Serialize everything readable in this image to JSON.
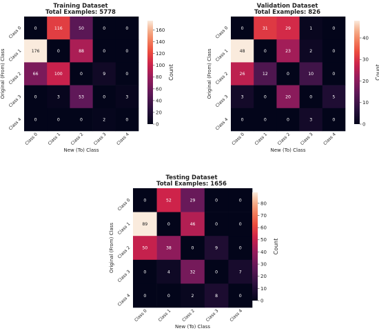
{
  "chart_data": [
    {
      "type": "heatmap",
      "title": "Training Dataset",
      "subtitle": "Total Examples: 5778",
      "xlabel": "New (To) Class",
      "ylabel": "Original (From) Class",
      "x_categories": [
        "Class 0",
        "Class 1",
        "Class 2",
        "Class 3",
        "Class 4"
      ],
      "y_categories": [
        "Class 0",
        "Class 1",
        "Class 2",
        "Class 3",
        "Class 4"
      ],
      "values": [
        [
          0,
          116,
          50,
          0,
          0
        ],
        [
          176,
          0,
          88,
          0,
          0
        ],
        [
          66,
          100,
          0,
          9,
          0
        ],
        [
          0,
          3,
          53,
          0,
          3
        ],
        [
          0,
          0,
          0,
          2,
          0
        ]
      ],
      "colorbar": {
        "label": "Count",
        "ticks": [
          0,
          20,
          40,
          60,
          80,
          100,
          120,
          140,
          160
        ],
        "vmax": 176
      }
    },
    {
      "type": "heatmap",
      "title": "Validation Dataset",
      "subtitle": "Total Examples: 826",
      "xlabel": "New (To) Class",
      "ylabel": "Original (From) Class",
      "x_categories": [
        "Class 0",
        "Class 1",
        "Class 2",
        "Class 3",
        "Class 4"
      ],
      "y_categories": [
        "Class 0",
        "Class 1",
        "Class 2",
        "Class 3",
        "Class 4"
      ],
      "values": [
        [
          0,
          31,
          29,
          1,
          0
        ],
        [
          48,
          0,
          23,
          2,
          0
        ],
        [
          26,
          12,
          0,
          10,
          0
        ],
        [
          3,
          0,
          20,
          0,
          5
        ],
        [
          0,
          0,
          0,
          3,
          0
        ]
      ],
      "colorbar": {
        "label": "Count",
        "ticks": [
          0,
          10,
          20,
          30,
          40
        ],
        "vmax": 48
      }
    },
    {
      "type": "heatmap",
      "title": "Testing Dataset",
      "subtitle": "Total Examples: 1656",
      "xlabel": "New (To) Class",
      "ylabel": "Original (From) Class",
      "x_categories": [
        "Class 0",
        "Class 1",
        "Class 2",
        "Class 3",
        "Class 4"
      ],
      "y_categories": [
        "Class 0",
        "Class 1",
        "Class 2",
        "Class 3",
        "Class 4"
      ],
      "values": [
        [
          0,
          52,
          29,
          0,
          0
        ],
        [
          89,
          0,
          46,
          0,
          0
        ],
        [
          50,
          38,
          0,
          9,
          0
        ],
        [
          0,
          4,
          32,
          0,
          7
        ],
        [
          0,
          0,
          2,
          8,
          0
        ]
      ],
      "colorbar": {
        "label": "Count",
        "ticks": [
          0,
          10,
          20,
          30,
          40,
          50,
          60,
          70,
          80
        ],
        "vmax": 89
      }
    }
  ]
}
